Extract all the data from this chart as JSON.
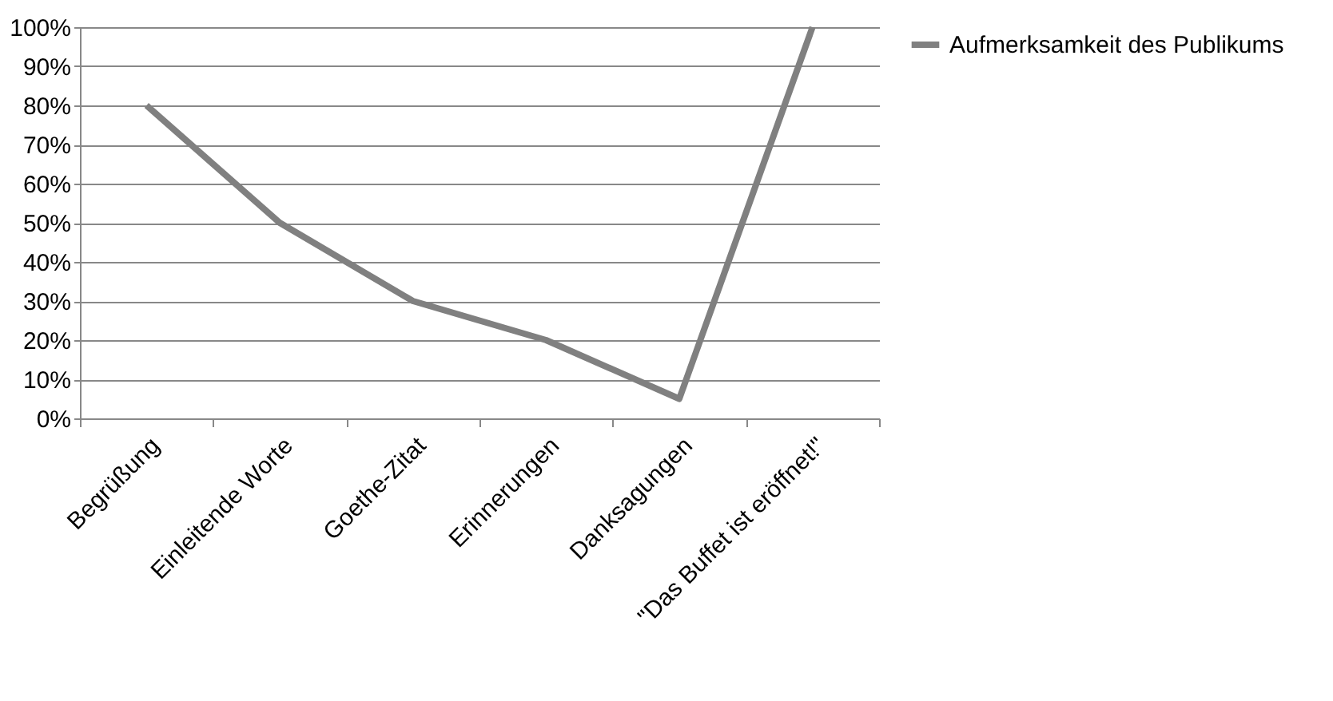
{
  "chart_data": {
    "type": "line",
    "categories": [
      "Begrüßung",
      "Einleitende Worte",
      "Goethe-Zitat",
      "Erinnerungen",
      "Danksagungen",
      "\"Das Buffet ist eröffnet!\""
    ],
    "series": [
      {
        "name": "Aufmerksamkeit des Publikums",
        "color": "#808080",
        "values": [
          80,
          50,
          30,
          20,
          5,
          100
        ]
      }
    ],
    "ylim": [
      0,
      100
    ],
    "yticks": [
      {
        "value": 0,
        "label": "0%"
      },
      {
        "value": 10,
        "label": "10%"
      },
      {
        "value": 20,
        "label": "20%"
      },
      {
        "value": 30,
        "label": "30%"
      },
      {
        "value": 40,
        "label": "40%"
      },
      {
        "value": 50,
        "label": "50%"
      },
      {
        "value": 60,
        "label": "60%"
      },
      {
        "value": 70,
        "label": "70%"
      },
      {
        "value": 80,
        "label": "80%"
      },
      {
        "value": 90,
        "label": "90%"
      },
      {
        "value": 100,
        "label": "100%"
      }
    ],
    "grid": "y",
    "legend": "right",
    "marker": "none",
    "line_style": "solid"
  }
}
